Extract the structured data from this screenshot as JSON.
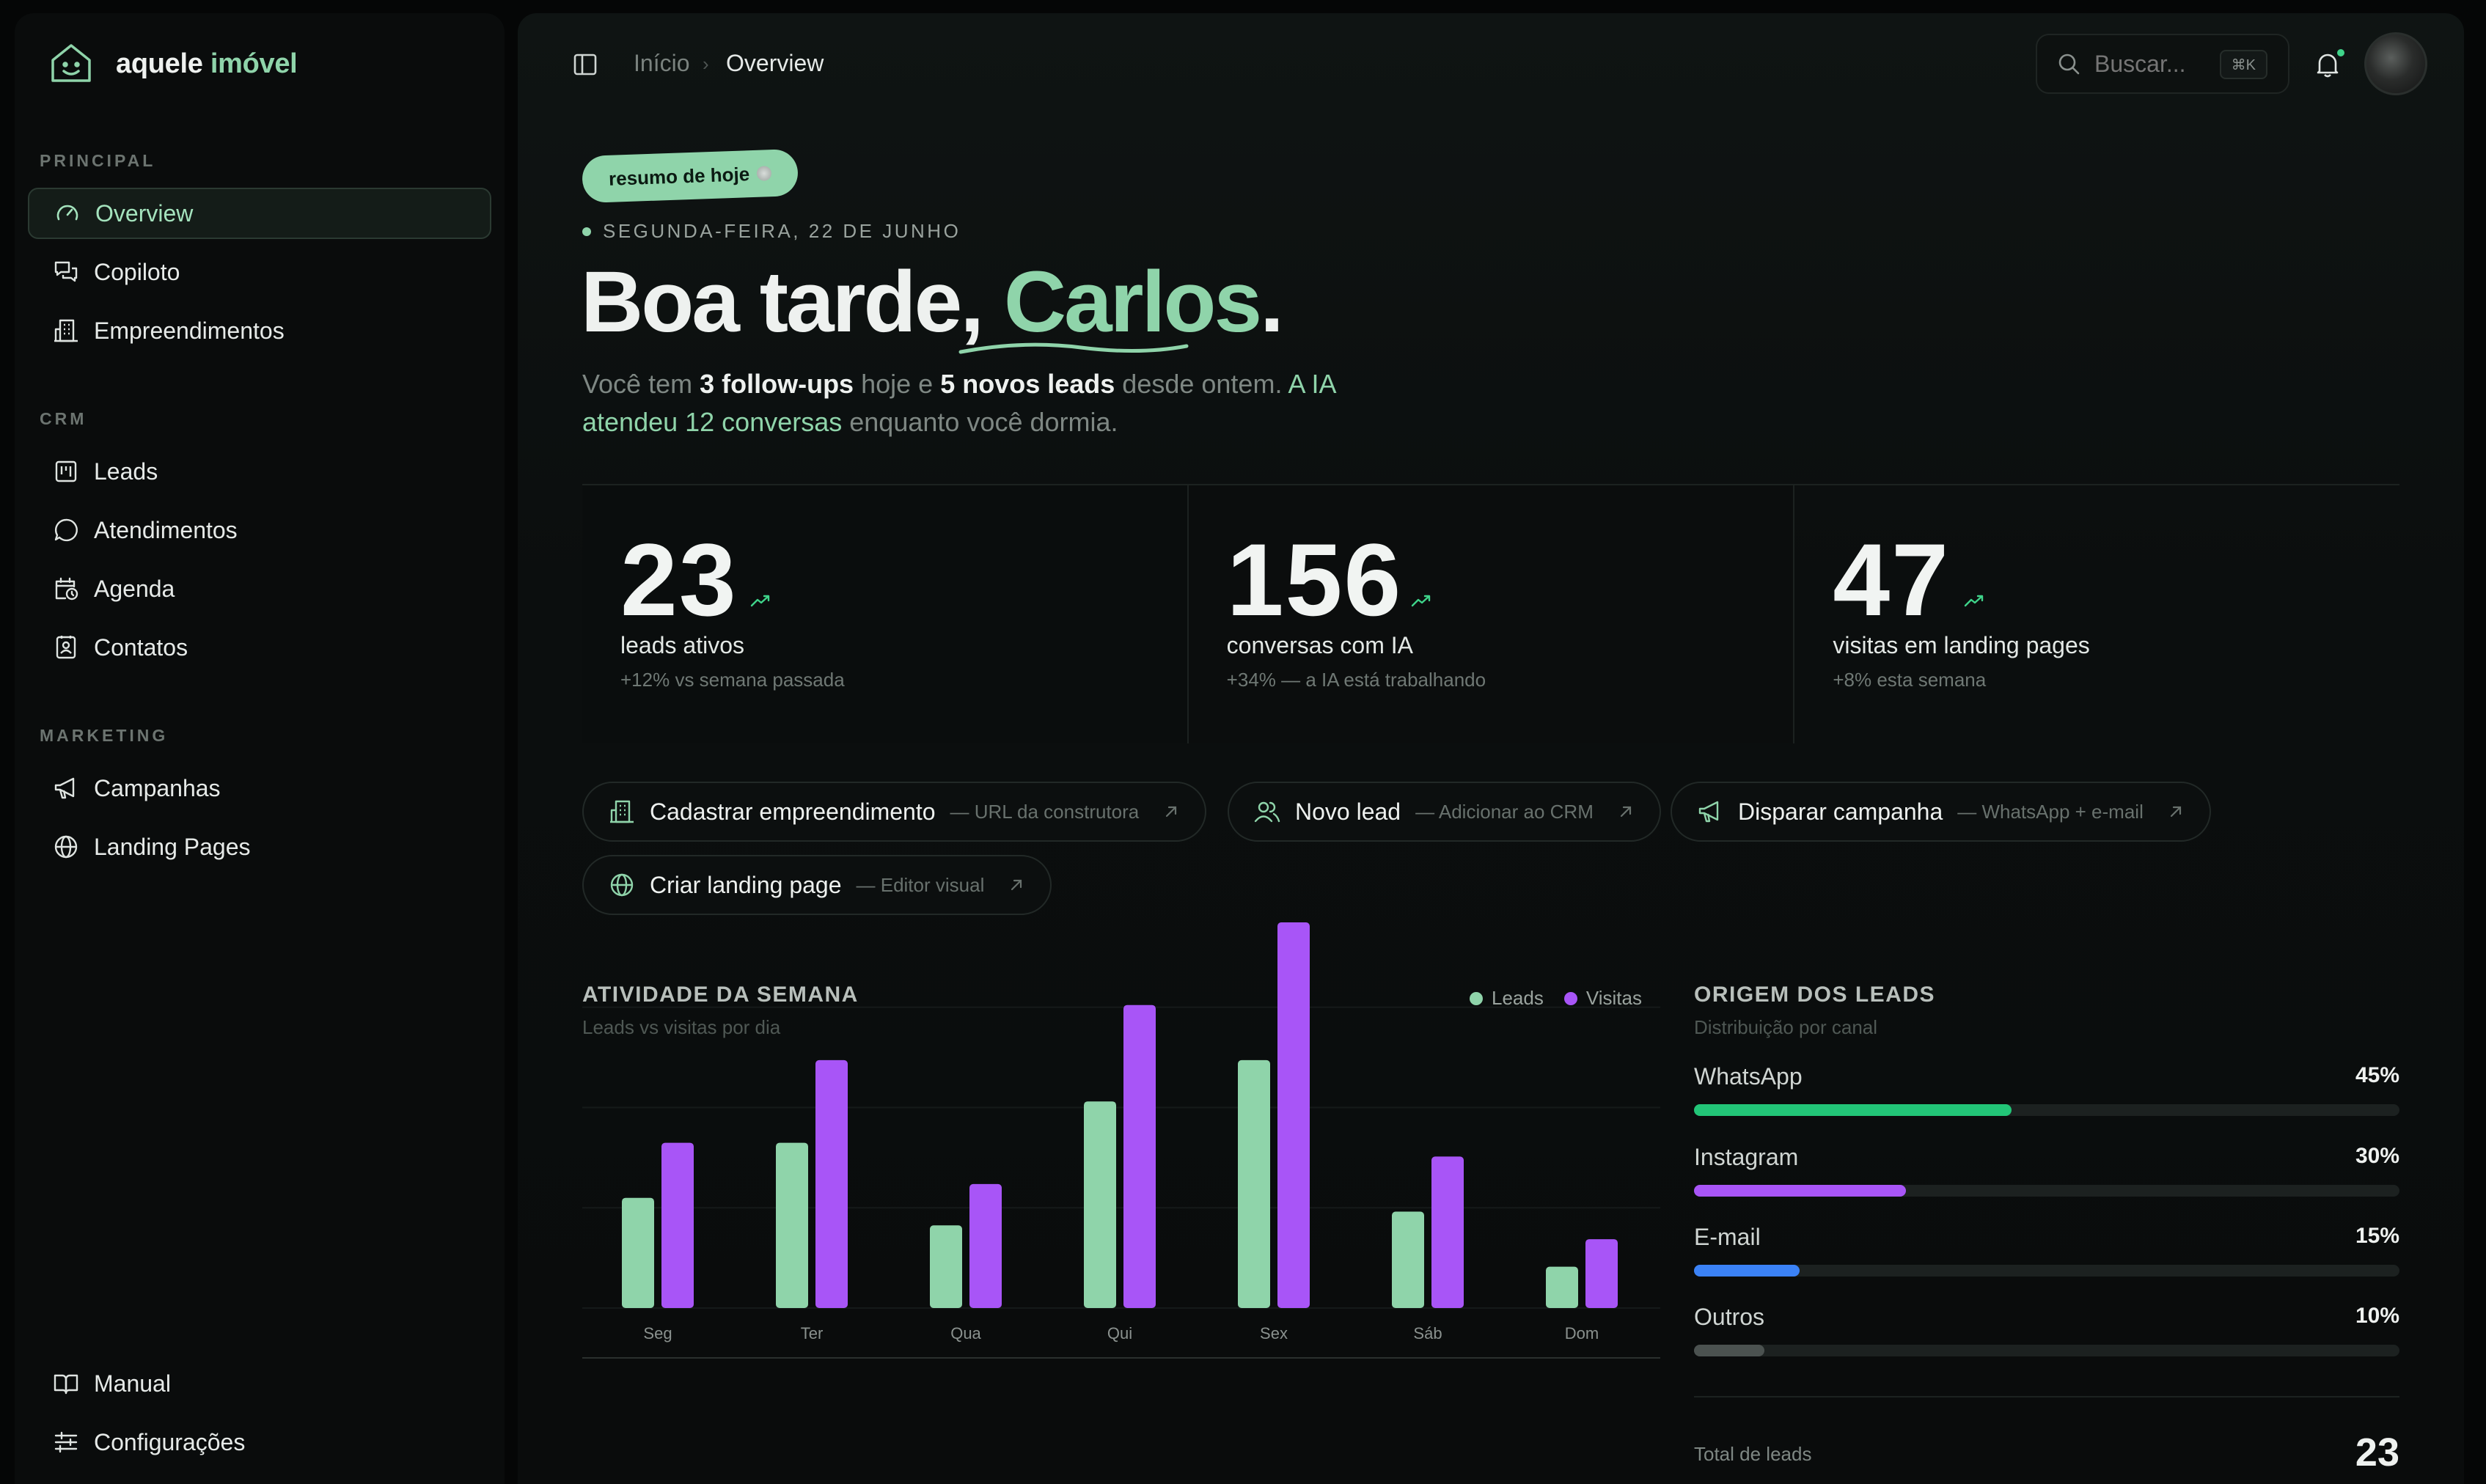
{
  "brand": {
    "name_main": "aquele",
    "name_accent": "imóvel"
  },
  "sidebar": {
    "sections": [
      {
        "title": "PRINCIPAL",
        "items": [
          {
            "label": "Overview",
            "icon": "gauge-icon",
            "active": true
          },
          {
            "label": "Copiloto",
            "icon": "chat-bubbles-icon"
          },
          {
            "label": "Empreendimentos",
            "icon": "building-icon"
          }
        ]
      },
      {
        "title": "CRM",
        "items": [
          {
            "label": "Leads",
            "icon": "kanban-icon"
          },
          {
            "label": "Atendimentos",
            "icon": "message-circle-icon"
          },
          {
            "label": "Agenda",
            "icon": "calendar-clock-icon"
          },
          {
            "label": "Contatos",
            "icon": "contact-book-icon"
          }
        ]
      },
      {
        "title": "MARKETING",
        "items": [
          {
            "label": "Campanhas",
            "icon": "megaphone-icon"
          },
          {
            "label": "Landing Pages",
            "icon": "globe-icon"
          }
        ]
      }
    ],
    "footer": [
      {
        "label": "Manual",
        "icon": "book-open-icon"
      },
      {
        "label": "Configurações",
        "icon": "sliders-icon"
      }
    ]
  },
  "topbar": {
    "breadcrumb": {
      "home": "Início",
      "separator": "›",
      "current": "Overview"
    },
    "search": {
      "placeholder": "Buscar...",
      "shortcut": "⌘K"
    }
  },
  "hero": {
    "pill": "resumo de hoje",
    "date": "SEGUNDA-FEIRA, 22 DE JUNHO",
    "greeting_prefix": "Boa tarde, ",
    "greeting_name": "Carlos",
    "greeting_suffix": ".",
    "intro": {
      "p1": "Você tem ",
      "b1": "3 follow-ups",
      "p2": " hoje e ",
      "b2": "5 novos leads",
      "p3": " desde ontem. ",
      "h1": "A IA atendeu 12 conversas",
      "p4": " enquanto você dormia."
    }
  },
  "stats": [
    {
      "value": "23",
      "label": "leads ativos",
      "sub": "+12% vs semana passada"
    },
    {
      "value": "156",
      "label": "conversas com IA",
      "sub": "+34% — a IA está trabalhando"
    },
    {
      "value": "47",
      "label": "visitas em landing pages",
      "sub": "+8% esta semana"
    }
  ],
  "actions": [
    {
      "label": "Cadastrar empreendimento",
      "sub": "— URL da construtora",
      "icon": "building-icon"
    },
    {
      "label": "Novo lead",
      "sub": "— Adicionar ao CRM",
      "icon": "users-icon"
    },
    {
      "label": "Disparar campanha",
      "sub": "— WhatsApp + e-mail",
      "icon": "megaphone-icon"
    },
    {
      "label": "Criar landing page",
      "sub": "— Editor visual",
      "icon": "globe-icon"
    }
  ],
  "activity": {
    "title": "ATIVIDADE DA SEMANA",
    "subtitle": "Leads vs visitas por dia",
    "legend": [
      "Leads",
      "Visitas"
    ]
  },
  "chart_data": {
    "type": "bar",
    "categories": [
      "Seg",
      "Ter",
      "Qua",
      "Qui",
      "Sex",
      "Sáb",
      "Dom"
    ],
    "series": [
      {
        "name": "Leads",
        "values": [
          8,
          12,
          6,
          15,
          18,
          7,
          3
        ],
        "color": "#8fd4aa"
      },
      {
        "name": "Visitas",
        "values": [
          12,
          18,
          9,
          22,
          28,
          11,
          5
        ],
        "color": "#a855f7"
      }
    ],
    "ylim": [
      0,
      28
    ],
    "grid": true,
    "legend_position": "top-right"
  },
  "origin": {
    "title": "ORIGEM DOS LEADS",
    "subtitle": "Distribuição por canal",
    "rows": [
      {
        "name": "WhatsApp",
        "pct_label": "45%",
        "fraction": 0.45,
        "color": "#22c577"
      },
      {
        "name": "Instagram",
        "pct_label": "30%",
        "fraction": 0.3,
        "color": "#a855f7"
      },
      {
        "name": "E-mail",
        "pct_label": "15%",
        "fraction": 0.15,
        "color": "#3b82f6"
      },
      {
        "name": "Outros",
        "pct_label": "10%",
        "fraction": 0.1,
        "color": "#4b5250"
      }
    ],
    "total_label": "Total de leads",
    "total_value": "23"
  }
}
